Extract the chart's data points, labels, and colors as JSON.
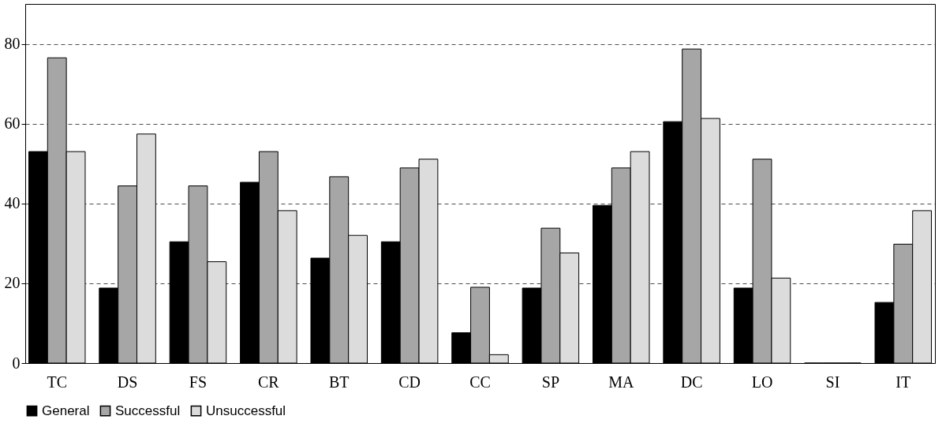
{
  "chart_data": {
    "type": "bar",
    "categories": [
      "TC",
      "DS",
      "FS",
      "CR",
      "BT",
      "CD",
      "CC",
      "SP",
      "MA",
      "DC",
      "LO",
      "SI",
      "IT"
    ],
    "series": [
      {
        "name": "General",
        "color": "#000000",
        "values": [
          53,
          18.8,
          30.4,
          45.3,
          26.3,
          30.4,
          7.6,
          18.8,
          39.5,
          60.5,
          18.8,
          0,
          15.2
        ]
      },
      {
        "name": "Successful",
        "color": "#a6a6a6",
        "values": [
          76.5,
          44.4,
          44.4,
          53,
          46.7,
          48.9,
          19,
          33.8,
          48.9,
          78.7,
          51.1,
          0,
          29.8
        ]
      },
      {
        "name": "Unsuccessful",
        "color": "#dcdcdc",
        "values": [
          53,
          57.4,
          25.4,
          38.2,
          32,
          51.1,
          2.1,
          27.6,
          53,
          61.3,
          21.3,
          0,
          38.2
        ]
      }
    ],
    "ylim": [
      0,
      90
    ],
    "yticks": [
      0,
      20,
      40,
      60,
      80
    ],
    "grid": "y",
    "legend": "bottom"
  }
}
